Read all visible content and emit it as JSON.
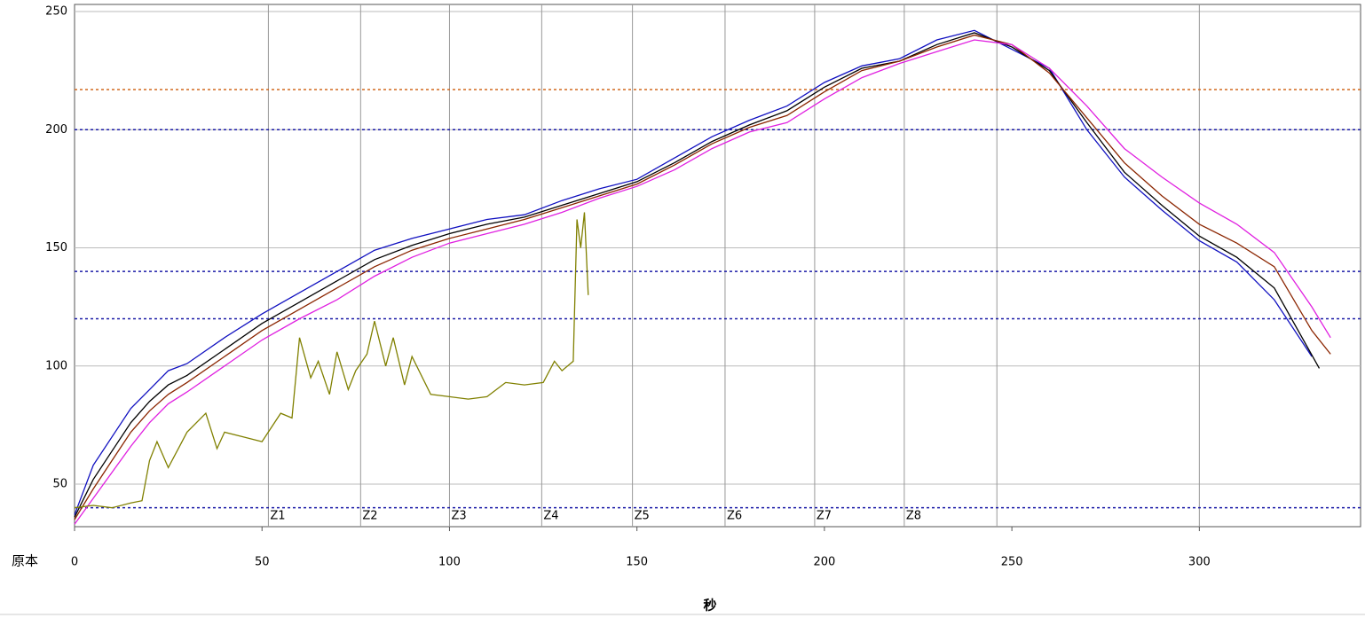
{
  "chart_data": {
    "type": "line",
    "x_label": "秒",
    "corner_label": "原本",
    "xlim": [
      0,
      343
    ],
    "ylim": [
      32,
      253
    ],
    "xticks": [
      0,
      50,
      100,
      150,
      200,
      250,
      300
    ],
    "yticks": [
      50,
      100,
      150,
      200,
      250
    ],
    "grid": true,
    "zone_lines": [
      51.7,
      76.3,
      100,
      124.6,
      148.8,
      173.5,
      197.4,
      221.3,
      246,
      300
    ],
    "zone_labels": [
      "Z1",
      "Z2",
      "Z3",
      "Z4",
      "Z5",
      "Z6",
      "Z7",
      "Z8",
      null,
      null
    ],
    "reference_lines": [
      {
        "value": 217,
        "color": "#d2691e"
      },
      {
        "value": 200,
        "color": "#1a1aa6"
      },
      {
        "value": 140,
        "color": "#1a1aa6"
      },
      {
        "value": 120,
        "color": "#1a1aa6"
      },
      {
        "value": 40,
        "color": "#1a1aa6"
      }
    ],
    "series": [
      {
        "color": "#1010c0",
        "x": [
          0,
          5,
          10,
          15,
          20,
          25,
          30,
          40,
          50,
          60,
          70,
          80,
          90,
          100,
          110,
          120,
          130,
          140,
          150,
          160,
          170,
          180,
          190,
          200,
          210,
          220,
          230,
          240,
          250,
          260,
          270,
          280,
          290,
          300,
          310,
          320,
          330
        ],
        "values": [
          37,
          58,
          70,
          82,
          90,
          98,
          101,
          112,
          122,
          131,
          140,
          149,
          154,
          158,
          162,
          164,
          170,
          175,
          179,
          188,
          197,
          204,
          210,
          220,
          227,
          230,
          238,
          242,
          234,
          226,
          200,
          180,
          166,
          153,
          144,
          128,
          104
        ]
      },
      {
        "color": "#000000",
        "x": [
          0,
          5,
          10,
          15,
          20,
          25,
          30,
          40,
          50,
          60,
          70,
          80,
          90,
          100,
          110,
          120,
          130,
          140,
          150,
          160,
          170,
          180,
          190,
          200,
          210,
          220,
          230,
          240,
          250,
          260,
          270,
          280,
          290,
          300,
          310,
          320,
          332
        ],
        "values": [
          36,
          52,
          64,
          76,
          85,
          92,
          96,
          107,
          118,
          127,
          136,
          145,
          151,
          156,
          160,
          163,
          168,
          173,
          178,
          186,
          195,
          202,
          208,
          218,
          226,
          229,
          236,
          241,
          235,
          225,
          203,
          182,
          168,
          155,
          146,
          133,
          99
        ]
      },
      {
        "color": "#8b2500",
        "x": [
          0,
          5,
          10,
          15,
          20,
          25,
          30,
          40,
          50,
          60,
          70,
          80,
          90,
          100,
          110,
          120,
          130,
          140,
          150,
          160,
          170,
          180,
          190,
          200,
          210,
          220,
          230,
          240,
          250,
          260,
          270,
          280,
          290,
          300,
          310,
          320,
          330,
          335
        ],
        "values": [
          35,
          48,
          60,
          72,
          81,
          88,
          93,
          104,
          115,
          124,
          133,
          142,
          149,
          154,
          158,
          162,
          167,
          172,
          177,
          185,
          194,
          201,
          206,
          216,
          225,
          229,
          235,
          240,
          236,
          224,
          205,
          186,
          172,
          160,
          152,
          142,
          115,
          105
        ]
      },
      {
        "color": "#e020e0",
        "x": [
          0,
          5,
          10,
          15,
          20,
          25,
          30,
          40,
          50,
          60,
          70,
          80,
          90,
          100,
          110,
          120,
          130,
          140,
          150,
          160,
          170,
          180,
          190,
          200,
          210,
          220,
          230,
          240,
          250,
          260,
          270,
          280,
          290,
          300,
          310,
          320,
          330,
          335
        ],
        "values": [
          33,
          44,
          55,
          66,
          76,
          84,
          89,
          100,
          111,
          120,
          128,
          138,
          146,
          152,
          156,
          160,
          165,
          171,
          176,
          183,
          192,
          199,
          203,
          213,
          222,
          228,
          233,
          238,
          236,
          226,
          210,
          192,
          180,
          169,
          160,
          148,
          125,
          112
        ]
      },
      {
        "color": "#808000",
        "x": [
          0,
          5,
          10,
          15,
          18,
          20,
          22,
          25,
          28,
          30,
          35,
          38,
          40,
          45,
          50,
          55,
          58,
          60,
          63,
          65,
          68,
          70,
          73,
          75,
          78,
          80,
          83,
          85,
          88,
          90,
          95,
          100,
          105,
          110,
          115,
          120,
          125,
          128,
          130,
          133,
          134,
          135,
          136,
          137
        ],
        "values": [
          40,
          41,
          40,
          42,
          43,
          60,
          68,
          57,
          66,
          72,
          80,
          65,
          72,
          70,
          68,
          80,
          78,
          112,
          95,
          102,
          88,
          106,
          90,
          98,
          105,
          119,
          100,
          112,
          92,
          104,
          88,
          87,
          86,
          87,
          93,
          92,
          93,
          102,
          98,
          102,
          162,
          150,
          165,
          130
        ]
      }
    ]
  }
}
